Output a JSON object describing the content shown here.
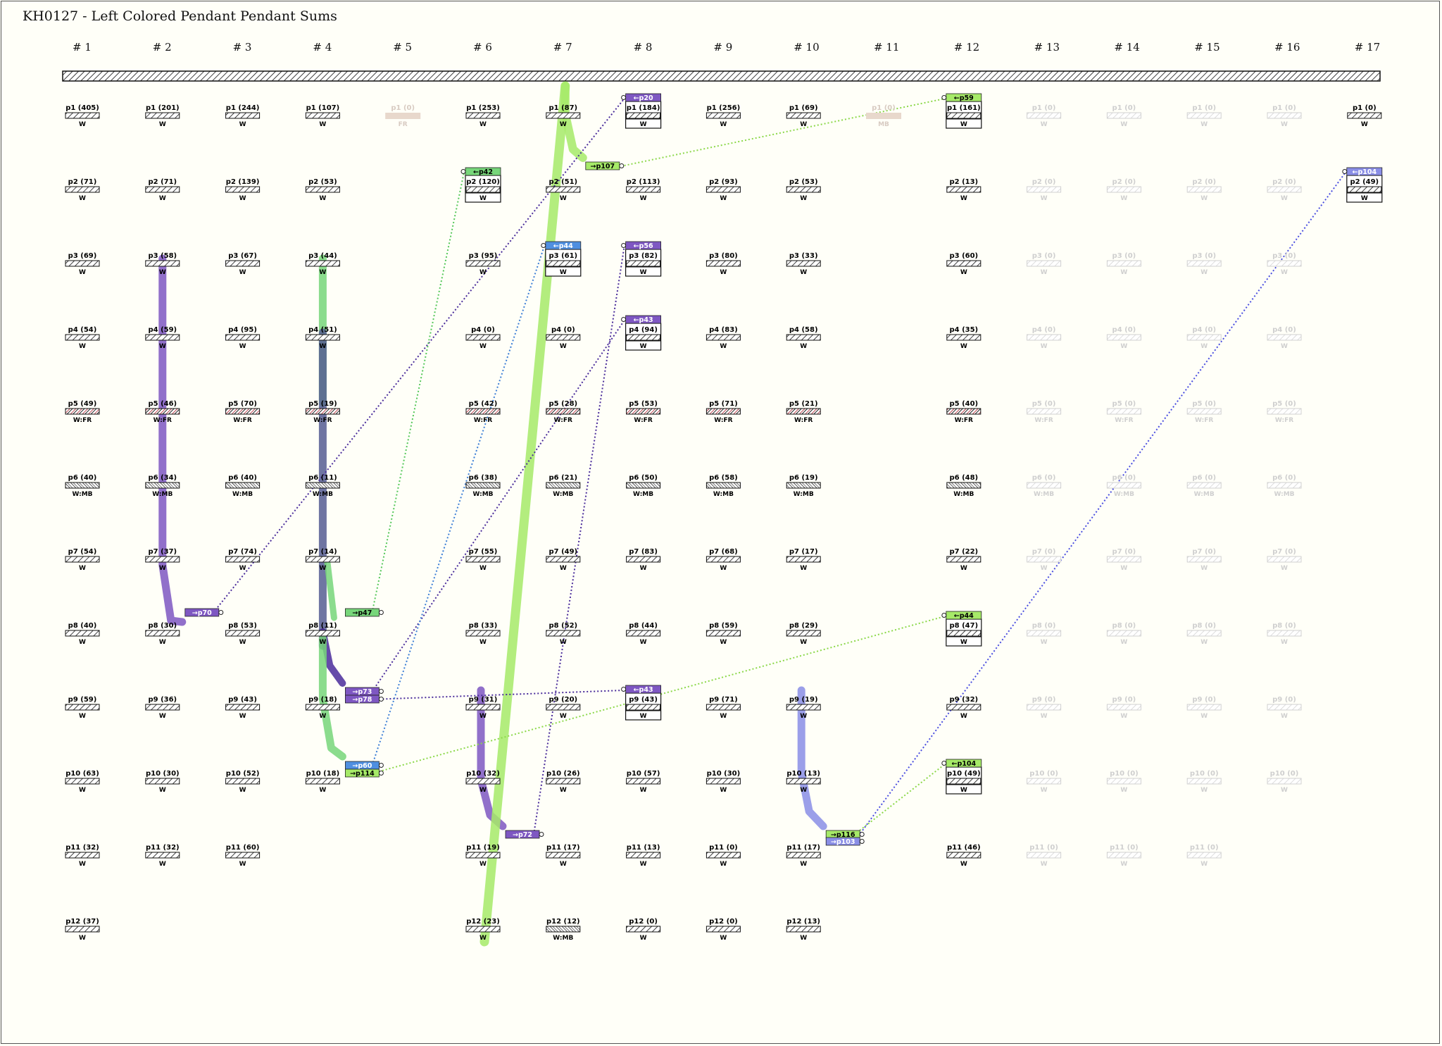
{
  "title": "KH0127 - Left Colored Pendant Pendant Sums",
  "colors": {
    "background": "#fffff8",
    "purple": "#7e57c2",
    "dark_purple": "#4a2c9b",
    "navy": "#565d93",
    "green": "#77d67a",
    "light_green": "#a6ea68",
    "blue": "#4f8fe0",
    "periwinkle": "#8a8ee6",
    "fr_stripe": "#b7333d",
    "ghost": "#d9d9d9",
    "light_brown": "#e8d8cc"
  },
  "columns": [
    "# 1",
    "# 2",
    "# 3",
    "# 4",
    "# 5",
    "# 6",
    "# 7",
    "# 8",
    "# 9",
    "# 10",
    "# 11",
    "# 12",
    "# 13",
    "# 14",
    "# 15",
    "# 16",
    "# 17"
  ],
  "pendants": [
    {
      "c": 0,
      "r": 0,
      "label": "p1 (405)",
      "sub": "W",
      "t": "w"
    },
    {
      "c": 0,
      "r": 1,
      "label": "p2 (71)",
      "sub": "W",
      "t": "w"
    },
    {
      "c": 0,
      "r": 2,
      "label": "p3 (69)",
      "sub": "W",
      "t": "w"
    },
    {
      "c": 0,
      "r": 3,
      "label": "p4 (54)",
      "sub": "W",
      "t": "w"
    },
    {
      "c": 0,
      "r": 4,
      "label": "p5 (49)",
      "sub": "W:FR",
      "t": "fr"
    },
    {
      "c": 0,
      "r": 5,
      "label": "p6 (40)",
      "sub": "W:MB",
      "t": "mb"
    },
    {
      "c": 0,
      "r": 6,
      "label": "p7 (54)",
      "sub": "W",
      "t": "w"
    },
    {
      "c": 0,
      "r": 7,
      "label": "p8 (40)",
      "sub": "W",
      "t": "w"
    },
    {
      "c": 0,
      "r": 8,
      "label": "p9 (59)",
      "sub": "W",
      "t": "w"
    },
    {
      "c": 0,
      "r": 9,
      "label": "p10 (63)",
      "sub": "W",
      "t": "w"
    },
    {
      "c": 0,
      "r": 10,
      "label": "p11 (32)",
      "sub": "W",
      "t": "w"
    },
    {
      "c": 0,
      "r": 11,
      "label": "p12 (37)",
      "sub": "W",
      "t": "w"
    },
    {
      "c": 1,
      "r": 0,
      "label": "p1 (201)",
      "sub": "W",
      "t": "w"
    },
    {
      "c": 1,
      "r": 1,
      "label": "p2 (71)",
      "sub": "W",
      "t": "w"
    },
    {
      "c": 1,
      "r": 2,
      "label": "p3 (58)",
      "sub": "W",
      "t": "w"
    },
    {
      "c": 1,
      "r": 3,
      "label": "p4 (59)",
      "sub": "W",
      "t": "w"
    },
    {
      "c": 1,
      "r": 4,
      "label": "p5 (46)",
      "sub": "W:FR",
      "t": "fr"
    },
    {
      "c": 1,
      "r": 5,
      "label": "p6 (34)",
      "sub": "W:MB",
      "t": "mb"
    },
    {
      "c": 1,
      "r": 6,
      "label": "p7 (37)",
      "sub": "W",
      "t": "w"
    },
    {
      "c": 1,
      "r": 7,
      "label": "p8 (30)",
      "sub": "W",
      "t": "w"
    },
    {
      "c": 1,
      "r": 8,
      "label": "p9 (36)",
      "sub": "W",
      "t": "w"
    },
    {
      "c": 1,
      "r": 9,
      "label": "p10 (30)",
      "sub": "W",
      "t": "w"
    },
    {
      "c": 1,
      "r": 10,
      "label": "p11 (32)",
      "sub": "W",
      "t": "w"
    },
    {
      "c": 2,
      "r": 0,
      "label": "p1 (244)",
      "sub": "W",
      "t": "w"
    },
    {
      "c": 2,
      "r": 1,
      "label": "p2 (139)",
      "sub": "W",
      "t": "w"
    },
    {
      "c": 2,
      "r": 2,
      "label": "p3 (67)",
      "sub": "W",
      "t": "w"
    },
    {
      "c": 2,
      "r": 3,
      "label": "p4 (95)",
      "sub": "W",
      "t": "w"
    },
    {
      "c": 2,
      "r": 4,
      "label": "p5 (70)",
      "sub": "W:FR",
      "t": "fr"
    },
    {
      "c": 2,
      "r": 5,
      "label": "p6 (40)",
      "sub": "W:MB",
      "t": "mb"
    },
    {
      "c": 2,
      "r": 6,
      "label": "p7 (74)",
      "sub": "W",
      "t": "w"
    },
    {
      "c": 2,
      "r": 7,
      "label": "p8 (53)",
      "sub": "W",
      "t": "w"
    },
    {
      "c": 2,
      "r": 8,
      "label": "p9 (43)",
      "sub": "W",
      "t": "w"
    },
    {
      "c": 2,
      "r": 9,
      "label": "p10 (52)",
      "sub": "W",
      "t": "w"
    },
    {
      "c": 2,
      "r": 10,
      "label": "p11 (60)",
      "sub": "W",
      "t": "w"
    },
    {
      "c": 3,
      "r": 0,
      "label": "p1 (107)",
      "sub": "W",
      "t": "w"
    },
    {
      "c": 3,
      "r": 1,
      "label": "p2 (53)",
      "sub": "W",
      "t": "w"
    },
    {
      "c": 3,
      "r": 2,
      "label": "p3 (44)",
      "sub": "W",
      "t": "w"
    },
    {
      "c": 3,
      "r": 3,
      "label": "p4 (51)",
      "sub": "W",
      "t": "w"
    },
    {
      "c": 3,
      "r": 4,
      "label": "p5 (19)",
      "sub": "W:FR",
      "t": "fr"
    },
    {
      "c": 3,
      "r": 5,
      "label": "p6 (11)",
      "sub": "W:MB",
      "t": "mb"
    },
    {
      "c": 3,
      "r": 6,
      "label": "p7 (14)",
      "sub": "W",
      "t": "w"
    },
    {
      "c": 3,
      "r": 7,
      "label": "p8 (11)",
      "sub": "W",
      "t": "w"
    },
    {
      "c": 3,
      "r": 8,
      "label": "p9 (18)",
      "sub": "W",
      "t": "w"
    },
    {
      "c": 3,
      "r": 9,
      "label": "p10 (18)",
      "sub": "W",
      "t": "w"
    },
    {
      "c": 4,
      "r": 0,
      "label": "p1 (0)",
      "sub": "FR",
      "t": "brown"
    },
    {
      "c": 5,
      "r": 0,
      "label": "p1 (253)",
      "sub": "W",
      "t": "w"
    },
    {
      "c": 5,
      "r": 1,
      "label": "p2 (120)",
      "sub": "W",
      "t": "box"
    },
    {
      "c": 5,
      "r": 2,
      "label": "p3 (95)",
      "sub": "W",
      "t": "w"
    },
    {
      "c": 5,
      "r": 3,
      "label": "p4 (0)",
      "sub": "W",
      "t": "w"
    },
    {
      "c": 5,
      "r": 4,
      "label": "p5 (42)",
      "sub": "W:FR",
      "t": "fr"
    },
    {
      "c": 5,
      "r": 5,
      "label": "p6 (38)",
      "sub": "W:MB",
      "t": "mb"
    },
    {
      "c": 5,
      "r": 6,
      "label": "p7 (55)",
      "sub": "W",
      "t": "w"
    },
    {
      "c": 5,
      "r": 7,
      "label": "p8 (33)",
      "sub": "W",
      "t": "w"
    },
    {
      "c": 5,
      "r": 8,
      "label": "p9 (31)",
      "sub": "W",
      "t": "w"
    },
    {
      "c": 5,
      "r": 9,
      "label": "p10 (32)",
      "sub": "W",
      "t": "w"
    },
    {
      "c": 5,
      "r": 10,
      "label": "p11 (19)",
      "sub": "W",
      "t": "w"
    },
    {
      "c": 5,
      "r": 11,
      "label": "p12 (23)",
      "sub": "W",
      "t": "w"
    },
    {
      "c": 6,
      "r": 0,
      "label": "p1 (87)",
      "sub": "W",
      "t": "w"
    },
    {
      "c": 6,
      "r": 1,
      "label": "p2 (51)",
      "sub": "W",
      "t": "w"
    },
    {
      "c": 6,
      "r": 2,
      "label": "p3 (61)",
      "sub": "W",
      "t": "box"
    },
    {
      "c": 6,
      "r": 3,
      "label": "p4 (0)",
      "sub": "W",
      "t": "w"
    },
    {
      "c": 6,
      "r": 4,
      "label": "p5 (28)",
      "sub": "W:FR",
      "t": "fr"
    },
    {
      "c": 6,
      "r": 5,
      "label": "p6 (21)",
      "sub": "W:MB",
      "t": "mb"
    },
    {
      "c": 6,
      "r": 6,
      "label": "p7 (49)",
      "sub": "W",
      "t": "w"
    },
    {
      "c": 6,
      "r": 7,
      "label": "p8 (52)",
      "sub": "W",
      "t": "w"
    },
    {
      "c": 6,
      "r": 8,
      "label": "p9 (20)",
      "sub": "W",
      "t": "w"
    },
    {
      "c": 6,
      "r": 9,
      "label": "p10 (26)",
      "sub": "W",
      "t": "w"
    },
    {
      "c": 6,
      "r": 10,
      "label": "p11 (17)",
      "sub": "W",
      "t": "w"
    },
    {
      "c": 6,
      "r": 11,
      "label": "p12 (12)",
      "sub": "W:MB",
      "t": "mb"
    },
    {
      "c": 7,
      "r": 0,
      "label": "p1 (184)",
      "sub": "W",
      "t": "box"
    },
    {
      "c": 7,
      "r": 1,
      "label": "p2 (113)",
      "sub": "W",
      "t": "w"
    },
    {
      "c": 7,
      "r": 2,
      "label": "p3 (82)",
      "sub": "W",
      "t": "box"
    },
    {
      "c": 7,
      "r": 3,
      "label": "p4 (94)",
      "sub": "W",
      "t": "box"
    },
    {
      "c": 7,
      "r": 4,
      "label": "p5 (53)",
      "sub": "W:FR",
      "t": "fr"
    },
    {
      "c": 7,
      "r": 5,
      "label": "p6 (50)",
      "sub": "W:MB",
      "t": "mb"
    },
    {
      "c": 7,
      "r": 6,
      "label": "p7 (83)",
      "sub": "W",
      "t": "w"
    },
    {
      "c": 7,
      "r": 7,
      "label": "p8 (44)",
      "sub": "W",
      "t": "w"
    },
    {
      "c": 7,
      "r": 8,
      "label": "p9 (43)",
      "sub": "W",
      "t": "box"
    },
    {
      "c": 7,
      "r": 9,
      "label": "p10 (57)",
      "sub": "W",
      "t": "w"
    },
    {
      "c": 7,
      "r": 10,
      "label": "p11 (13)",
      "sub": "W",
      "t": "w"
    },
    {
      "c": 7,
      "r": 11,
      "label": "p12 (0)",
      "sub": "W",
      "t": "w"
    },
    {
      "c": 8,
      "r": 0,
      "label": "p1 (256)",
      "sub": "W",
      "t": "w"
    },
    {
      "c": 8,
      "r": 1,
      "label": "p2 (93)",
      "sub": "W",
      "t": "w"
    },
    {
      "c": 8,
      "r": 2,
      "label": "p3 (80)",
      "sub": "W",
      "t": "w"
    },
    {
      "c": 8,
      "r": 3,
      "label": "p4 (83)",
      "sub": "W",
      "t": "w"
    },
    {
      "c": 8,
      "r": 4,
      "label": "p5 (71)",
      "sub": "W:FR",
      "t": "fr"
    },
    {
      "c": 8,
      "r": 5,
      "label": "p6 (58)",
      "sub": "W:MB",
      "t": "mb"
    },
    {
      "c": 8,
      "r": 6,
      "label": "p7 (68)",
      "sub": "W",
      "t": "w"
    },
    {
      "c": 8,
      "r": 7,
      "label": "p8 (59)",
      "sub": "W",
      "t": "w"
    },
    {
      "c": 8,
      "r": 8,
      "label": "p9 (71)",
      "sub": "W",
      "t": "w"
    },
    {
      "c": 8,
      "r": 9,
      "label": "p10 (30)",
      "sub": "W",
      "t": "w"
    },
    {
      "c": 8,
      "r": 10,
      "label": "p11 (0)",
      "sub": "W",
      "t": "w"
    },
    {
      "c": 8,
      "r": 11,
      "label": "p12 (0)",
      "sub": "W",
      "t": "w"
    },
    {
      "c": 9,
      "r": 0,
      "label": "p1 (69)",
      "sub": "W",
      "t": "w"
    },
    {
      "c": 9,
      "r": 1,
      "label": "p2 (53)",
      "sub": "W",
      "t": "w"
    },
    {
      "c": 9,
      "r": 2,
      "label": "p3 (33)",
      "sub": "W",
      "t": "w"
    },
    {
      "c": 9,
      "r": 3,
      "label": "p4 (58)",
      "sub": "W",
      "t": "w"
    },
    {
      "c": 9,
      "r": 4,
      "label": "p5 (21)",
      "sub": "W:FR",
      "t": "fr"
    },
    {
      "c": 9,
      "r": 5,
      "label": "p6 (19)",
      "sub": "W:MB",
      "t": "mb"
    },
    {
      "c": 9,
      "r": 6,
      "label": "p7 (17)",
      "sub": "W",
      "t": "w"
    },
    {
      "c": 9,
      "r": 7,
      "label": "p8 (29)",
      "sub": "W",
      "t": "w"
    },
    {
      "c": 9,
      "r": 8,
      "label": "p9 (19)",
      "sub": "W",
      "t": "w"
    },
    {
      "c": 9,
      "r": 9,
      "label": "p10 (13)",
      "sub": "W",
      "t": "w"
    },
    {
      "c": 9,
      "r": 10,
      "label": "p11 (17)",
      "sub": "W",
      "t": "w"
    },
    {
      "c": 9,
      "r": 11,
      "label": "p12 (13)",
      "sub": "W",
      "t": "w"
    },
    {
      "c": 10,
      "r": 0,
      "label": "p1 (0)",
      "sub": "MB",
      "t": "brown"
    },
    {
      "c": 11,
      "r": 0,
      "label": "p1 (161)",
      "sub": "W",
      "t": "box"
    },
    {
      "c": 11,
      "r": 1,
      "label": "p2 (13)",
      "sub": "W",
      "t": "w"
    },
    {
      "c": 11,
      "r": 2,
      "label": "p3 (60)",
      "sub": "W",
      "t": "w"
    },
    {
      "c": 11,
      "r": 3,
      "label": "p4 (35)",
      "sub": "W",
      "t": "w"
    },
    {
      "c": 11,
      "r": 4,
      "label": "p5 (40)",
      "sub": "W:FR",
      "t": "fr"
    },
    {
      "c": 11,
      "r": 5,
      "label": "p6 (48)",
      "sub": "W:MB",
      "t": "mb"
    },
    {
      "c": 11,
      "r": 6,
      "label": "p7 (22)",
      "sub": "W",
      "t": "w"
    },
    {
      "c": 11,
      "r": 7,
      "label": "p8 (47)",
      "sub": "W",
      "t": "box"
    },
    {
      "c": 11,
      "r": 8,
      "label": "p9 (32)",
      "sub": "W",
      "t": "w"
    },
    {
      "c": 11,
      "r": 9,
      "label": "p10 (49)",
      "sub": "W",
      "t": "box"
    },
    {
      "c": 11,
      "r": 10,
      "label": "p11 (46)",
      "sub": "W",
      "t": "w"
    },
    {
      "c": 12,
      "r": 0,
      "label": "p1 (0)",
      "sub": "W",
      "t": "ghost"
    },
    {
      "c": 12,
      "r": 1,
      "label": "p2 (0)",
      "sub": "W",
      "t": "ghost"
    },
    {
      "c": 12,
      "r": 2,
      "label": "p3 (0)",
      "sub": "W",
      "t": "ghost"
    },
    {
      "c": 12,
      "r": 3,
      "label": "p4 (0)",
      "sub": "W",
      "t": "ghost"
    },
    {
      "c": 12,
      "r": 4,
      "label": "p5 (0)",
      "sub": "W:FR",
      "t": "ghost"
    },
    {
      "c": 12,
      "r": 5,
      "label": "p6 (0)",
      "sub": "W:MB",
      "t": "ghost"
    },
    {
      "c": 12,
      "r": 6,
      "label": "p7 (0)",
      "sub": "W",
      "t": "ghost"
    },
    {
      "c": 12,
      "r": 7,
      "label": "p8 (0)",
      "sub": "W",
      "t": "ghost"
    },
    {
      "c": 12,
      "r": 8,
      "label": "p9 (0)",
      "sub": "W",
      "t": "ghost"
    },
    {
      "c": 12,
      "r": 9,
      "label": "p10 (0)",
      "sub": "W",
      "t": "ghost"
    },
    {
      "c": 12,
      "r": 10,
      "label": "p11 (0)",
      "sub": "W",
      "t": "ghost"
    },
    {
      "c": 13,
      "r": 0,
      "label": "p1 (0)",
      "sub": "W",
      "t": "ghost"
    },
    {
      "c": 13,
      "r": 1,
      "label": "p2 (0)",
      "sub": "W",
      "t": "ghost"
    },
    {
      "c": 13,
      "r": 2,
      "label": "p3 (0)",
      "sub": "W",
      "t": "ghost"
    },
    {
      "c": 13,
      "r": 3,
      "label": "p4 (0)",
      "sub": "W",
      "t": "ghost"
    },
    {
      "c": 13,
      "r": 4,
      "label": "p5 (0)",
      "sub": "W:FR",
      "t": "ghost"
    },
    {
      "c": 13,
      "r": 5,
      "label": "p6 (0)",
      "sub": "W:MB",
      "t": "ghost"
    },
    {
      "c": 13,
      "r": 6,
      "label": "p7 (0)",
      "sub": "W",
      "t": "ghost"
    },
    {
      "c": 13,
      "r": 7,
      "label": "p8 (0)",
      "sub": "W",
      "t": "ghost"
    },
    {
      "c": 13,
      "r": 8,
      "label": "p9 (0)",
      "sub": "W",
      "t": "ghost"
    },
    {
      "c": 13,
      "r": 9,
      "label": "p10 (0)",
      "sub": "W",
      "t": "ghost"
    },
    {
      "c": 13,
      "r": 10,
      "label": "p11 (0)",
      "sub": "W",
      "t": "ghost"
    },
    {
      "c": 14,
      "r": 0,
      "label": "p1 (0)",
      "sub": "W",
      "t": "ghost"
    },
    {
      "c": 14,
      "r": 1,
      "label": "p2 (0)",
      "sub": "W",
      "t": "ghost"
    },
    {
      "c": 14,
      "r": 2,
      "label": "p3 (0)",
      "sub": "W",
      "t": "ghost"
    },
    {
      "c": 14,
      "r": 3,
      "label": "p4 (0)",
      "sub": "W",
      "t": "ghost"
    },
    {
      "c": 14,
      "r": 4,
      "label": "p5 (0)",
      "sub": "W:FR",
      "t": "ghost"
    },
    {
      "c": 14,
      "r": 5,
      "label": "p6 (0)",
      "sub": "W:MB",
      "t": "ghost"
    },
    {
      "c": 14,
      "r": 6,
      "label": "p7 (0)",
      "sub": "W",
      "t": "ghost"
    },
    {
      "c": 14,
      "r": 7,
      "label": "p8 (0)",
      "sub": "W",
      "t": "ghost"
    },
    {
      "c": 14,
      "r": 8,
      "label": "p9 (0)",
      "sub": "W",
      "t": "ghost"
    },
    {
      "c": 14,
      "r": 9,
      "label": "p10 (0)",
      "sub": "W",
      "t": "ghost"
    },
    {
      "c": 14,
      "r": 10,
      "label": "p11 (0)",
      "sub": "W",
      "t": "ghost"
    },
    {
      "c": 15,
      "r": 0,
      "label": "p1 (0)",
      "sub": "W",
      "t": "ghost"
    },
    {
      "c": 15,
      "r": 1,
      "label": "p2 (0)",
      "sub": "W",
      "t": "ghost"
    },
    {
      "c": 15,
      "r": 2,
      "label": "p3 (0)",
      "sub": "W",
      "t": "ghost"
    },
    {
      "c": 15,
      "r": 3,
      "label": "p4 (0)",
      "sub": "W",
      "t": "ghost"
    },
    {
      "c": 15,
      "r": 4,
      "label": "p5 (0)",
      "sub": "W:FR",
      "t": "ghost"
    },
    {
      "c": 15,
      "r": 5,
      "label": "p6 (0)",
      "sub": "W:MB",
      "t": "ghost"
    },
    {
      "c": 15,
      "r": 6,
      "label": "p7 (0)",
      "sub": "W",
      "t": "ghost"
    },
    {
      "c": 15,
      "r": 7,
      "label": "p8 (0)",
      "sub": "W",
      "t": "ghost"
    },
    {
      "c": 15,
      "r": 8,
      "label": "p9 (0)",
      "sub": "W",
      "t": "ghost"
    },
    {
      "c": 15,
      "r": 9,
      "label": "p10 (0)",
      "sub": "W",
      "t": "ghost"
    },
    {
      "c": 16,
      "r": 0,
      "label": "p1 (0)",
      "sub": "W",
      "t": "w"
    },
    {
      "c": 16,
      "r": 1,
      "label": "p2 (49)",
      "sub": "W",
      "t": "box"
    }
  ],
  "tags": [
    {
      "c": 7,
      "r": 0,
      "text": "←p20",
      "color": "#7e57c2",
      "fg": "#ffffff",
      "pos": "top"
    },
    {
      "c": 11,
      "r": 0,
      "text": "←p59",
      "color": "#a6ea68",
      "fg": "#000000",
      "pos": "top"
    },
    {
      "c": 5,
      "r": 1,
      "text": "←p42",
      "color": "#77d67a",
      "fg": "#000000",
      "pos": "top"
    },
    {
      "c": 16,
      "r": 1,
      "text": "←p104",
      "color": "#8a8ee6",
      "fg": "#ffffff",
      "pos": "top"
    },
    {
      "c": 6,
      "r": 2,
      "text": "←p44",
      "color": "#4f8fe0",
      "fg": "#ffffff",
      "pos": "top"
    },
    {
      "c": 7,
      "r": 2,
      "text": "←p56",
      "color": "#7e57c2",
      "fg": "#ffffff",
      "pos": "top"
    },
    {
      "c": 7,
      "r": 3,
      "text": "←p43",
      "color": "#7e57c2",
      "fg": "#ffffff",
      "pos": "top"
    },
    {
      "c": 11,
      "r": 7,
      "text": "←p44",
      "color": "#a6ea68",
      "fg": "#000000",
      "pos": "top"
    },
    {
      "c": 7,
      "r": 8,
      "text": "←p43",
      "color": "#7e57c2",
      "fg": "#ffffff",
      "pos": "top"
    },
    {
      "c": 11,
      "r": 9,
      "text": "←p104",
      "color": "#a6ea68",
      "fg": "#000000",
      "pos": "top"
    },
    {
      "c": 6,
      "r": 0,
      "text": "→p107",
      "color": "#a6ea68",
      "fg": "#000000",
      "pos": "out",
      "dy": 84
    },
    {
      "c": 1,
      "r": 6,
      "text": "→p70",
      "color": "#7e57c2",
      "fg": "#ffffff",
      "pos": "out",
      "dy": 88
    },
    {
      "c": 3,
      "r": 6,
      "text": "→p47",
      "color": "#77d67a",
      "fg": "#000000",
      "pos": "out",
      "dy": 88
    },
    {
      "c": 3,
      "r": 7,
      "text": "→p73",
      "color": "#7e57c2",
      "fg": "#ffffff",
      "pos": "out",
      "dy": 95
    },
    {
      "c": 3,
      "r": 7,
      "text": "→p78",
      "color": "#7e57c2",
      "fg": "#ffffff",
      "pos": "out",
      "dy": 106
    },
    {
      "c": 3,
      "r": 8,
      "text": "→p60",
      "color": "#4f8fe0",
      "fg": "#ffffff",
      "pos": "out",
      "dy": 95
    },
    {
      "c": 3,
      "r": 8,
      "text": "→p114",
      "color": "#a6ea68",
      "fg": "#000000",
      "pos": "out",
      "dy": 106
    },
    {
      "c": 5,
      "r": 9,
      "text": "→p72",
      "color": "#7e57c2",
      "fg": "#ffffff",
      "pos": "out",
      "dy": 88
    },
    {
      "c": 9,
      "r": 9,
      "text": "→p116",
      "color": "#a6ea68",
      "fg": "#000000",
      "pos": "out",
      "dy": 88
    },
    {
      "c": 9,
      "r": 9,
      "text": "→p103",
      "color": "#8a8ee6",
      "fg": "#ffffff",
      "pos": "out",
      "dy": 98
    }
  ]
}
